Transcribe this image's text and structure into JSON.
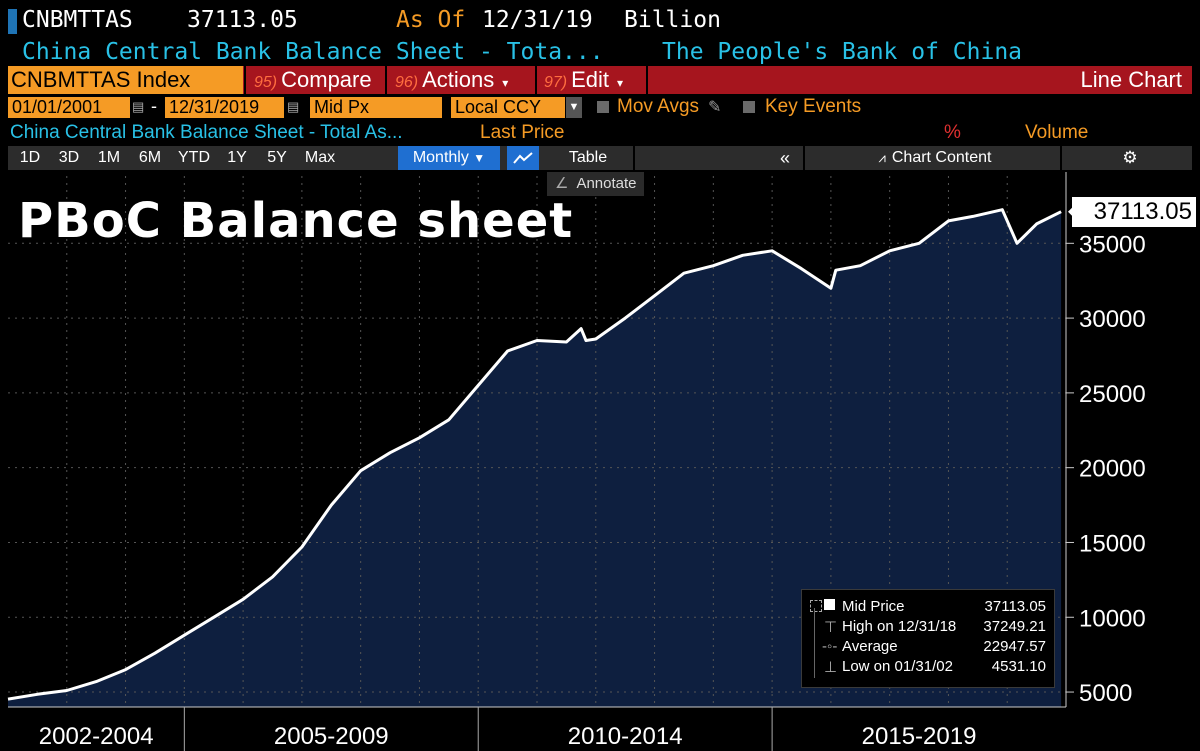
{
  "header": {
    "ticker": "CNBMTTAS",
    "value": "37113.05",
    "as_of_label": "As Of",
    "as_of_date": "12/31/19",
    "unit": "Billion",
    "description": "China Central Bank Balance Sheet - Tota...",
    "source": "The People's Bank of China"
  },
  "menubar": {
    "index_label": "CNBMTTAS Index",
    "compare_num": "95)",
    "compare_label": "Compare",
    "actions_num": "96)",
    "actions_label": "Actions",
    "edit_num": "97)",
    "edit_label": "Edit",
    "chart_type": "Line Chart"
  },
  "controls": {
    "start_date": "01/01/2001",
    "date_sep": "-",
    "end_date": "12/31/2019",
    "price_field": "Mid Px",
    "currency": "Local CCY",
    "mov_avgs_label": "Mov Avgs",
    "key_events_label": "Key Events"
  },
  "series_header": {
    "name": "China Central Bank Balance Sheet - Total As...",
    "price_label": "Last Price",
    "pct_label": "%",
    "volume_label": "Volume"
  },
  "toolbar": {
    "periods": [
      "1D",
      "3D",
      "1M",
      "6M",
      "YTD",
      "1Y",
      "5Y",
      "Max"
    ],
    "frequency": "Monthly",
    "table_label": "Table",
    "chart_content_label": "Chart Content",
    "annotate_label": "Annotate"
  },
  "chart_title": "PBoC Balance sheet",
  "last_value_label": "37113.05",
  "legend": {
    "rows": [
      {
        "label": "Mid Price",
        "value": "37113.05"
      },
      {
        "label": "High on 12/31/18",
        "value": "37249.21"
      },
      {
        "label": "Average",
        "value": "22947.57"
      },
      {
        "label": "Low on 01/31/02",
        "value": "4531.10"
      }
    ]
  },
  "colors": {
    "area_fill": "#0e1f3f",
    "line": "#ffffff",
    "accent_orange": "#f59b25",
    "menu_red": "#a6151e",
    "header_cyan": "#29c1e6"
  },
  "chart_data": {
    "type": "area",
    "title": "PBoC Balance sheet",
    "ylim": [
      4000,
      39500
    ],
    "yticks": [
      5000,
      10000,
      15000,
      20000,
      25000,
      30000,
      35000
    ],
    "x_groups": [
      "2002-2004",
      "2005-2009",
      "2010-2014",
      "2015-2019"
    ],
    "grid": true,
    "series": [
      {
        "name": "Mid Price",
        "x": [
          "2002-01",
          "2002-07",
          "2003-01",
          "2003-07",
          "2004-01",
          "2004-07",
          "2005-01",
          "2005-07",
          "2006-01",
          "2006-07",
          "2007-01",
          "2007-07",
          "2008-01",
          "2008-07",
          "2009-01",
          "2009-07",
          "2010-01",
          "2010-07",
          "2011-01",
          "2011-07",
          "2011-10",
          "2011-11",
          "2012-01",
          "2012-07",
          "2013-01",
          "2013-07",
          "2014-01",
          "2014-07",
          "2015-01",
          "2015-07",
          "2016-01",
          "2016-02",
          "2016-07",
          "2017-01",
          "2017-07",
          "2018-01",
          "2018-06",
          "2018-12",
          "2019-03",
          "2019-07",
          "2019-12"
        ],
        "values": [
          4531,
          4850,
          5100,
          5700,
          6500,
          7600,
          8800,
          10000,
          11200,
          12700,
          14700,
          17500,
          19800,
          21000,
          22000,
          23200,
          25500,
          27800,
          28500,
          28400,
          29300,
          28500,
          28600,
          30000,
          31500,
          33000,
          33500,
          34200,
          34500,
          33300,
          32000,
          33200,
          33500,
          34500,
          35000,
          36500,
          36800,
          37249,
          35000,
          36300,
          37113
        ]
      }
    ]
  }
}
